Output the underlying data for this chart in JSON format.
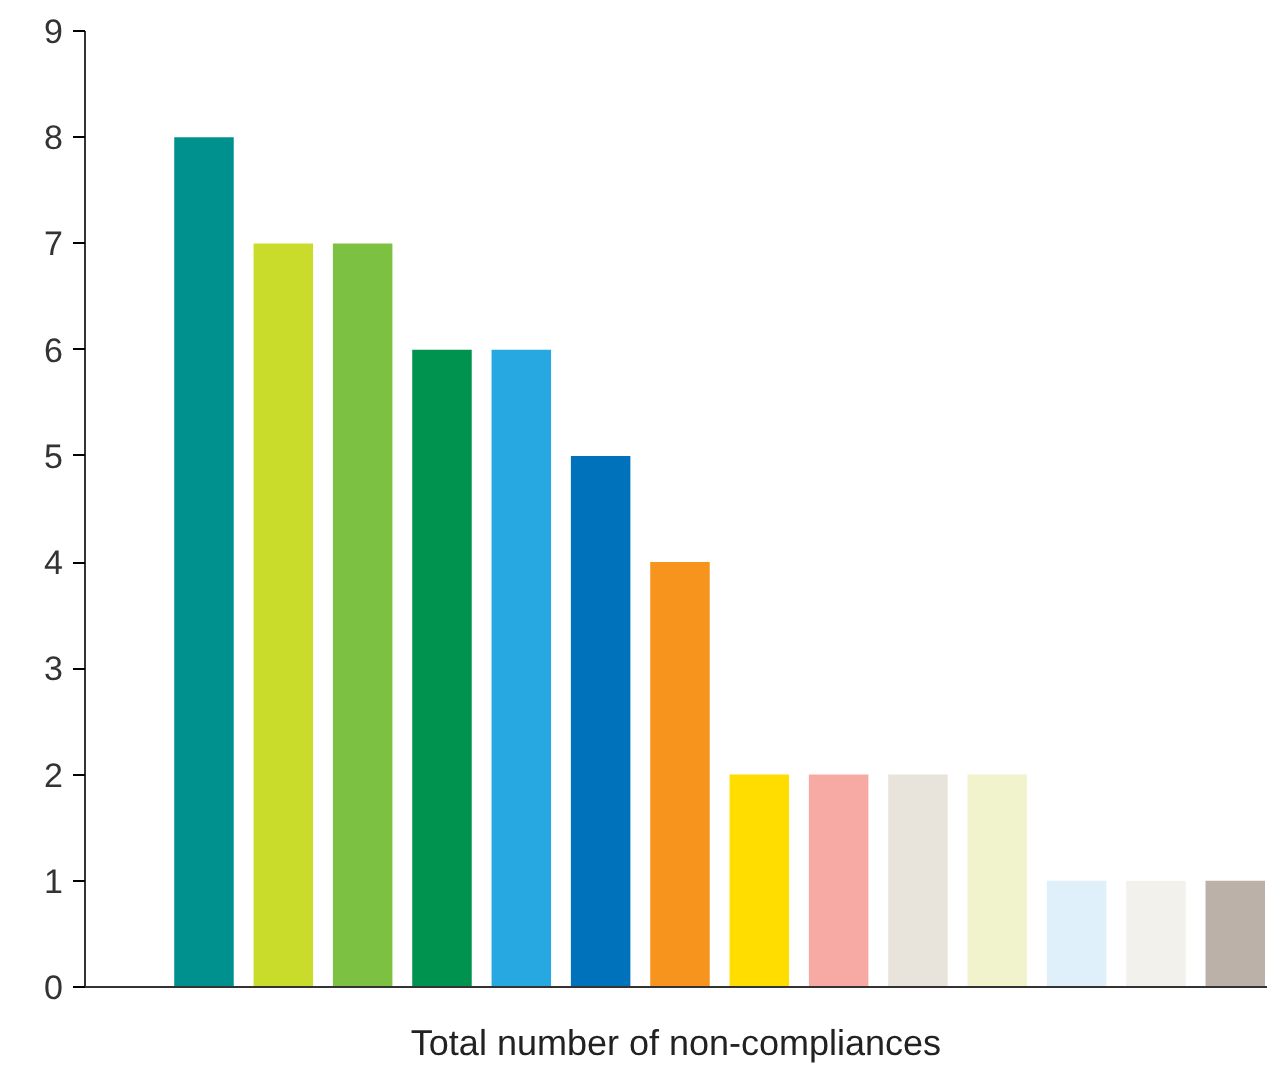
{
  "chart_data": {
    "type": "bar",
    "xlabel": "Total number of non-compliances",
    "categories": [
      null,
      null,
      null,
      null,
      null,
      null,
      null,
      null,
      null,
      null,
      null,
      null,
      null,
      null
    ],
    "values": [
      8,
      7,
      7,
      6,
      6,
      5,
      4,
      2,
      2,
      2,
      2,
      1,
      1,
      1
    ],
    "colors": [
      "#00918f",
      "#c9dc2b",
      "#7dc142",
      "#00924f",
      "#27a8e0",
      "#0072bb",
      "#f7941e",
      "#ffdd00",
      "#f6aaa3",
      "#e8e4dc",
      "#f0f3cb",
      "#dff0fa",
      "#f2f1ec",
      "#bcb1a8"
    ],
    "ylim": [
      0,
      9
    ],
    "yticks": [
      0,
      1,
      2,
      3,
      4,
      5,
      6,
      7,
      8,
      9
    ],
    "grid": false
  }
}
